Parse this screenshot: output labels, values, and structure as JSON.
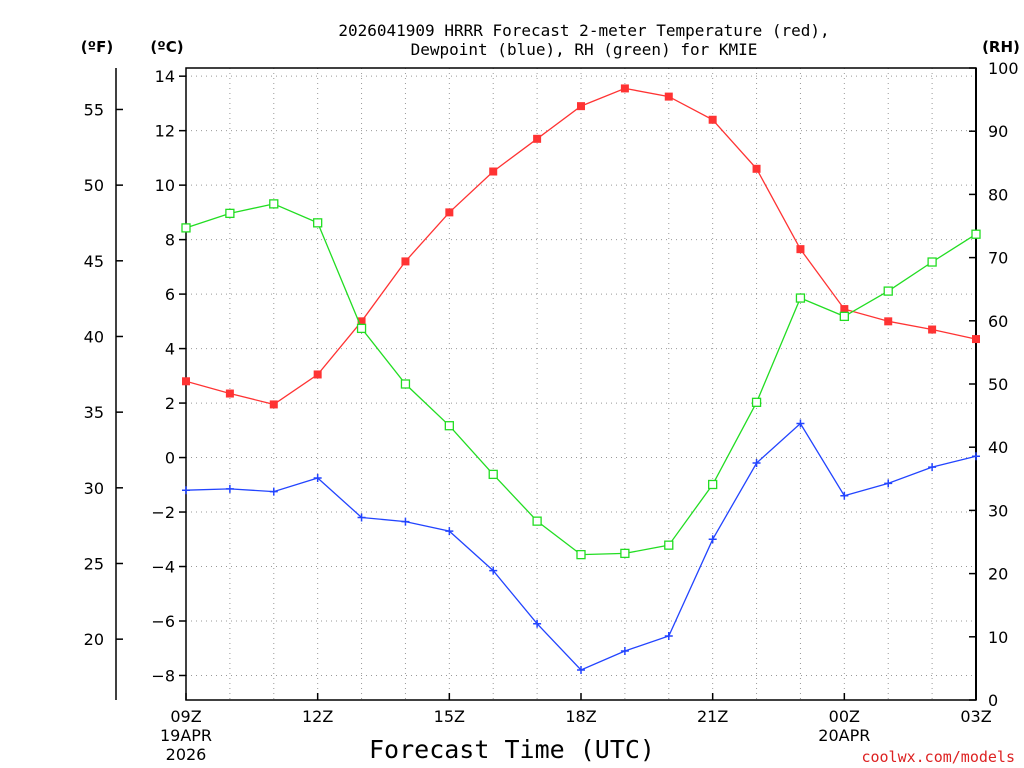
{
  "chart_data": {
    "type": "line",
    "title_line1": "2026041909 HRRR Forecast 2-meter Temperature (red),",
    "title_line2": "Dewpoint (blue), RH (green) for KMIE",
    "xlabel": "Forecast Time (UTC)",
    "credit": "coolwx.com/models",
    "unit_labels": {
      "fahrenheit": "(ºF)",
      "celsius": "(ºC)",
      "rh": "(RH)"
    },
    "x_ticks": [
      {
        "hour": 0,
        "label": "09Z",
        "sub1": "19APR",
        "sub2": "2026"
      },
      {
        "hour": 3,
        "label": "12Z"
      },
      {
        "hour": 6,
        "label": "15Z"
      },
      {
        "hour": 9,
        "label": "18Z"
      },
      {
        "hour": 12,
        "label": "21Z"
      },
      {
        "hour": 15,
        "label": "00Z",
        "sub1": "20APR"
      },
      {
        "hour": 18,
        "label": "03Z"
      }
    ],
    "xlim": [
      0,
      18
    ],
    "celsius_axis": {
      "ylim": [
        -8.9,
        14.3
      ],
      "ticks": [
        -8,
        -6,
        -4,
        -2,
        0,
        2,
        4,
        6,
        8,
        10,
        12,
        14
      ],
      "labels": [
        "−8",
        "−6",
        "−4",
        "−2",
        "0",
        "2",
        "4",
        "6",
        "8",
        "10",
        "12",
        "14"
      ]
    },
    "fahrenheit_axis": {
      "ticks": [
        20,
        25,
        30,
        35,
        40,
        45,
        50,
        55
      ],
      "labels": [
        "20",
        "25",
        "30",
        "35",
        "40",
        "45",
        "50",
        "55"
      ]
    },
    "rh_axis": {
      "ylim": [
        0,
        100
      ],
      "ticks": [
        0,
        10,
        20,
        30,
        40,
        50,
        60,
        70,
        80,
        90,
        100
      ],
      "labels": [
        "0",
        "10",
        "20",
        "30",
        "40",
        "50",
        "60",
        "70",
        "80",
        "90",
        "100"
      ]
    },
    "series": [
      {
        "name": "Temperature",
        "units": "C",
        "color": "#ff3333",
        "marker": "filled-square",
        "values": [
          2.8,
          2.35,
          1.95,
          3.05,
          5.0,
          7.2,
          9.0,
          10.5,
          11.7,
          12.9,
          13.55,
          13.25,
          12.4,
          10.6,
          7.65,
          5.45,
          5.0,
          4.7,
          4.35
        ]
      },
      {
        "name": "Dewpoint",
        "units": "C",
        "color": "#2244ff",
        "marker": "plus",
        "values": [
          -1.2,
          -1.15,
          -1.25,
          -0.75,
          -2.2,
          -2.35,
          -2.7,
          -4.15,
          -6.1,
          -7.8,
          -7.1,
          -6.55,
          -3.0,
          -0.2,
          1.25,
          -1.4,
          -0.95,
          -0.35,
          0.05
        ]
      },
      {
        "name": "RH",
        "units": "%",
        "color": "#22dd22",
        "marker": "open-square",
        "values": [
          74.7,
          77.0,
          78.5,
          75.5,
          58.8,
          50.0,
          43.4,
          35.7,
          28.3,
          23.0,
          23.2,
          24.5,
          34.1,
          47.1,
          63.6,
          60.7,
          64.7,
          69.3,
          73.7
        ]
      }
    ]
  }
}
